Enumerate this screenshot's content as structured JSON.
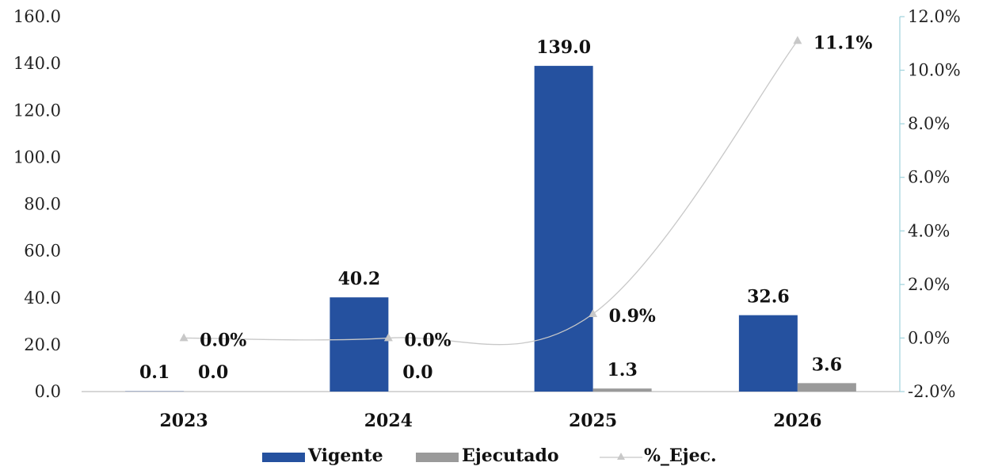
{
  "chart_data": {
    "type": "bar",
    "categories": [
      "2023",
      "2024",
      "2025",
      "2026"
    ],
    "series": [
      {
        "name": "Vigente",
        "type": "bar",
        "axis": "left",
        "color": "#25519F",
        "values": [
          0.1,
          40.2,
          139.0,
          32.6
        ],
        "labels": [
          "0.1",
          "40.2",
          "139.0",
          "32.6"
        ]
      },
      {
        "name": "Ejecutado",
        "type": "bar",
        "axis": "left",
        "color": "#9A9A9A",
        "values": [
          0.0,
          0.0,
          1.3,
          3.6
        ],
        "labels": [
          "0.0",
          "0.0",
          "1.3",
          "3.6"
        ]
      },
      {
        "name": "%_Ejec.",
        "type": "line",
        "axis": "right",
        "color": "#C8C8C8",
        "values": [
          0.0,
          0.0,
          0.9,
          11.1
        ],
        "labels": [
          "0.0%",
          "0.0%",
          "0.9%",
          "11.1%"
        ]
      }
    ],
    "y_left": {
      "range": [
        0,
        160
      ],
      "ticks": [
        "0.0",
        "20.0",
        "40.0",
        "60.0",
        "80.0",
        "100.0",
        "120.0",
        "140.0",
        "160.0"
      ]
    },
    "y_right": {
      "range": [
        -2,
        12
      ],
      "ticks": [
        "-2.0%",
        "0.0%",
        "2.0%",
        "4.0%",
        "6.0%",
        "8.0%",
        "10.0%",
        "12.0%"
      ]
    },
    "legend_position": "bottom",
    "grid": false
  }
}
